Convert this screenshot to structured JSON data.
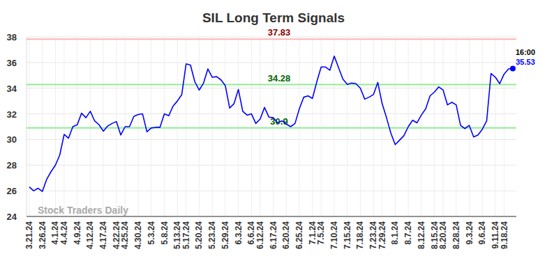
{
  "chart_data": {
    "type": "line",
    "title": "SIL Long Term Signals",
    "watermark": "Stock Traders Daily",
    "last_time": "16:00",
    "categories": [
      "3.21.24",
      null,
      null,
      "3.26.24",
      null,
      null,
      "4.1.24",
      null,
      "4.4.24",
      null,
      null,
      "4.9.24",
      null,
      null,
      "4.12.24",
      null,
      null,
      "4.17.24",
      null,
      null,
      "4.22.24",
      null,
      "4.25.24",
      null,
      null,
      "4.30.24",
      null,
      null,
      "5.3.24",
      null,
      null,
      "5.8.24",
      null,
      null,
      "5.13.24",
      null,
      "5.17.24",
      null,
      null,
      "5.20.24",
      null,
      null,
      "5.23.24",
      null,
      null,
      "5.29.24",
      null,
      null,
      "6.3.24",
      null,
      null,
      "6.6.24",
      null,
      "6.12.24",
      null,
      null,
      "6.17.24",
      null,
      null,
      "6.20.24",
      null,
      null,
      "6.25.24",
      null,
      null,
      "7.1.24",
      null,
      "7.5.24",
      null,
      null,
      "7.10.24",
      null,
      null,
      "7.15.24",
      null,
      null,
      "7.18.24",
      null,
      null,
      "7.23.24",
      null,
      "7.29.24",
      null,
      null,
      "8.1.24",
      null,
      null,
      "8.7.24",
      null,
      null,
      "8.12.24",
      null,
      null,
      "8.15.24",
      null,
      "8.20.24",
      null,
      null,
      "8.28.24",
      null,
      null,
      "9.3.24",
      null,
      null,
      "9.6.24",
      null,
      null,
      "9.11.24",
      null,
      "9.18.24",
      null,
      null
    ],
    "series": [
      {
        "name": "SIL",
        "color": "#0000ff",
        "values": [
          26.3,
          26.0,
          26.2,
          25.95,
          26.9,
          27.5,
          28.0,
          28.8,
          30.4,
          30.1,
          31.0,
          31.15,
          32.05,
          31.7,
          32.2,
          31.45,
          31.15,
          30.65,
          31.05,
          31.25,
          31.4,
          30.35,
          31.0,
          31.0,
          31.8,
          31.95,
          32.0,
          30.6,
          30.9,
          30.95,
          30.95,
          32.0,
          31.85,
          32.6,
          33.0,
          33.5,
          35.9,
          35.8,
          34.5,
          33.85,
          34.4,
          35.5,
          34.85,
          34.9,
          34.65,
          34.2,
          32.45,
          32.8,
          33.9,
          32.2,
          31.9,
          32.0,
          31.25,
          31.6,
          32.5,
          31.75,
          31.7,
          31.3,
          31.45,
          31.2,
          31.0,
          31.25,
          32.4,
          33.3,
          33.4,
          33.2,
          34.5,
          35.65,
          35.65,
          35.4,
          36.5,
          35.6,
          34.7,
          34.3,
          34.4,
          34.35,
          34.0,
          33.15,
          33.3,
          33.5,
          34.45,
          32.8,
          31.7,
          30.5,
          29.6,
          29.95,
          30.3,
          31.0,
          31.5,
          31.3,
          31.9,
          32.4,
          33.4,
          33.7,
          34.1,
          33.85,
          32.7,
          32.9,
          32.7,
          31.1,
          30.85,
          31.1,
          30.2,
          30.35,
          30.8,
          31.45,
          35.15,
          34.85,
          34.35,
          35.1,
          35.5,
          35.53
        ]
      }
    ],
    "reference_lines": [
      {
        "value": 37.83,
        "color": "#ffb3b3",
        "label_color": "#8b0000"
      },
      {
        "value": 34.28,
        "color": "#90ee90",
        "label_color": "#006400"
      },
      {
        "value": 30.9,
        "color": "#90ee90",
        "label_color": "#006400"
      }
    ],
    "ylim": [
      24,
      38
    ],
    "yticks": [
      24,
      26,
      28,
      30,
      32,
      34,
      36,
      38
    ],
    "grid": true
  }
}
